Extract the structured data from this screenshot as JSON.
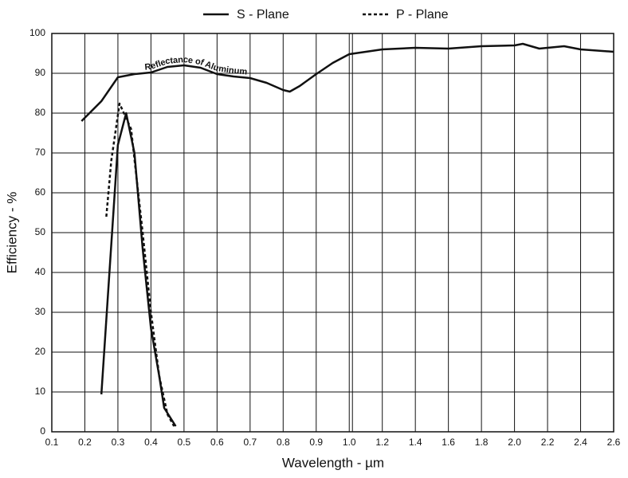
{
  "chart_data": {
    "type": "line",
    "x_label": "Wavelength - µm",
    "y_label": "Efficiency - %",
    "annotation": "Reflectance of Aluminum",
    "xlim": [
      0.1,
      2.6
    ],
    "xbreak": 1.0,
    "ylim": [
      0,
      100
    ],
    "xticks": [
      0.1,
      0.2,
      0.3,
      0.4,
      0.5,
      0.6,
      0.7,
      0.8,
      0.9,
      {
        "value": 1.0,
        "label": "1.0"
      },
      1.2,
      1.4,
      1.6,
      1.8,
      {
        "value": 2.0,
        "label": "2.0"
      },
      2.2,
      2.4,
      2.6
    ],
    "yticks": [
      0,
      10,
      20,
      30,
      40,
      50,
      60,
      70,
      80,
      90,
      100
    ],
    "grid": true,
    "series": [
      {
        "name": "S - Plane",
        "color": "#111111",
        "style": "solid",
        "in_legend": true,
        "x": [
          0.25,
          0.3,
          0.325,
          0.35,
          0.375,
          0.4,
          0.425,
          0.44,
          0.475
        ],
        "values": [
          9.4,
          72,
          80,
          70,
          46,
          26,
          14,
          6,
          1.4
        ]
      },
      {
        "name": "P - Plane",
        "color": "#111111",
        "style": "dashed",
        "in_legend": true,
        "x": [
          0.265,
          0.28,
          0.305,
          0.34,
          0.375,
          0.4,
          0.425,
          0.45,
          0.47
        ],
        "values": [
          54,
          68,
          82.4,
          76,
          50,
          30,
          14,
          4.4,
          1.4
        ]
      },
      {
        "name": "Reflectance of Aluminum",
        "color": "#111111",
        "style": "solid",
        "in_legend": false,
        "x": [
          0.19,
          0.25,
          0.3,
          0.35,
          0.4,
          0.45,
          0.5,
          0.55,
          0.6,
          0.65,
          0.7,
          0.75,
          0.8,
          0.82,
          0.85,
          0.9,
          0.95,
          1.0,
          1.1,
          1.2,
          1.4,
          1.6,
          1.8,
          2.0,
          2.05,
          2.15,
          2.3,
          2.4,
          2.6
        ],
        "values": [
          78,
          83,
          89,
          89.8,
          90.2,
          91.6,
          92,
          91.4,
          89.8,
          89.2,
          88.8,
          87.6,
          85.8,
          85.4,
          86.8,
          89.8,
          92.6,
          94.8,
          95.4,
          96,
          96.4,
          96.2,
          96.8,
          97,
          97.4,
          96.2,
          96.8,
          96,
          95.4
        ]
      }
    ]
  }
}
